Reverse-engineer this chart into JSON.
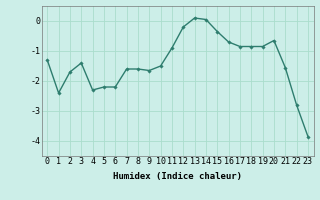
{
  "x": [
    0,
    1,
    2,
    3,
    4,
    5,
    6,
    7,
    8,
    9,
    10,
    11,
    12,
    13,
    14,
    15,
    16,
    17,
    18,
    19,
    20,
    21,
    22,
    23
  ],
  "y": [
    -1.3,
    -2.4,
    -1.7,
    -1.4,
    -2.3,
    -2.2,
    -2.2,
    -1.6,
    -1.6,
    -1.65,
    -1.5,
    -0.9,
    -0.2,
    0.1,
    0.05,
    -0.35,
    -0.7,
    -0.85,
    -0.85,
    -0.85,
    -0.65,
    -1.55,
    -2.8,
    -3.85
  ],
  "line_color": "#2e7d6e",
  "marker": "D",
  "marker_size": 1.8,
  "line_width": 1.0,
  "background_color": "#cceee8",
  "grid_color": "#aaddcc",
  "xlabel": "Humidex (Indice chaleur)",
  "xlim": [
    -0.5,
    23.5
  ],
  "ylim": [
    -4.5,
    0.5
  ],
  "yticks": [
    0,
    -1,
    -2,
    -3,
    -4
  ],
  "xticks": [
    0,
    1,
    2,
    3,
    4,
    5,
    6,
    7,
    8,
    9,
    10,
    11,
    12,
    13,
    14,
    15,
    16,
    17,
    18,
    19,
    20,
    21,
    22,
    23
  ],
  "xlabel_fontsize": 6.5,
  "tick_fontsize": 6.0
}
